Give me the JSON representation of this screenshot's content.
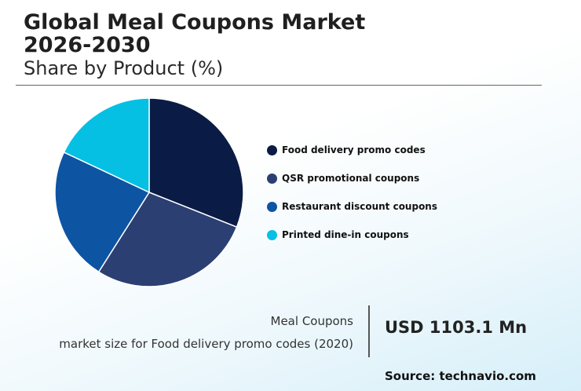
{
  "header": {
    "title": "Global Meal Coupons Market 2026-2030",
    "subtitle": "Share by Product (%)"
  },
  "chart_data": {
    "type": "pie",
    "categories": [
      "Food delivery promo codes",
      "QSR promotional coupons",
      "Restaurant discount coupons",
      "Printed dine-in coupons"
    ],
    "values": [
      31,
      28,
      23,
      18
    ],
    "colors": [
      "#0a1c45",
      "#2b3f72",
      "#0d54a3",
      "#05c0e3"
    ],
    "legend_position": "right"
  },
  "footer": {
    "label_line1": "Meal Coupons",
    "label_line2": "market size for Food delivery promo codes (2020)",
    "value": "USD 1103.1 Mn",
    "source": "Source: technavio.com"
  }
}
